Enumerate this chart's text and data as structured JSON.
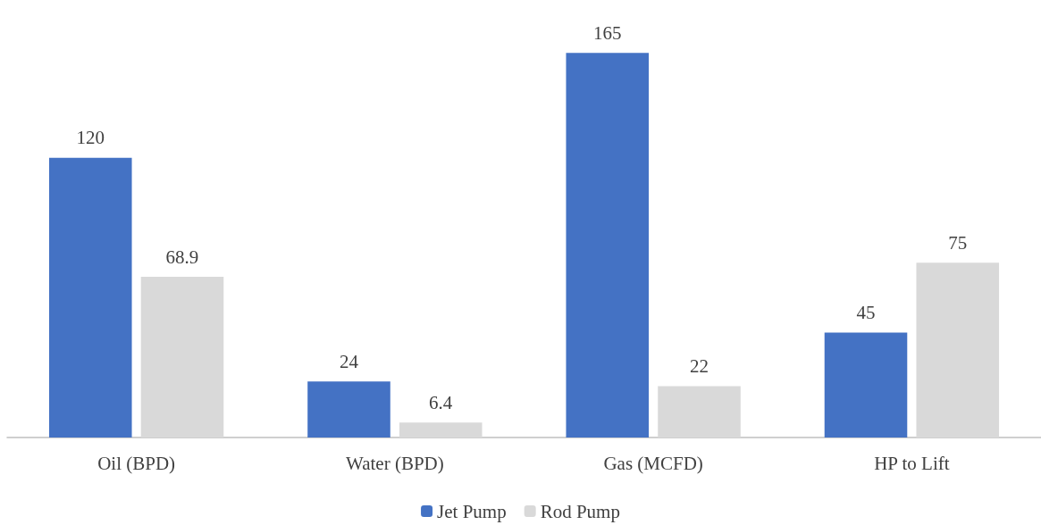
{
  "chart_data": {
    "type": "bar",
    "categories": [
      "Oil (BPD)",
      "Water (BPD)",
      "Gas (MCFD)",
      "HP to Lift"
    ],
    "series": [
      {
        "name": "Jet Pump",
        "color": "#4472c4",
        "values": [
          120,
          24,
          165,
          45
        ]
      },
      {
        "name": "Rod Pump",
        "color": "#d9d9d9",
        "values": [
          68.9,
          6.4,
          22,
          75
        ]
      }
    ],
    "data_labels": true,
    "legend": "bottom",
    "grid": false
  }
}
